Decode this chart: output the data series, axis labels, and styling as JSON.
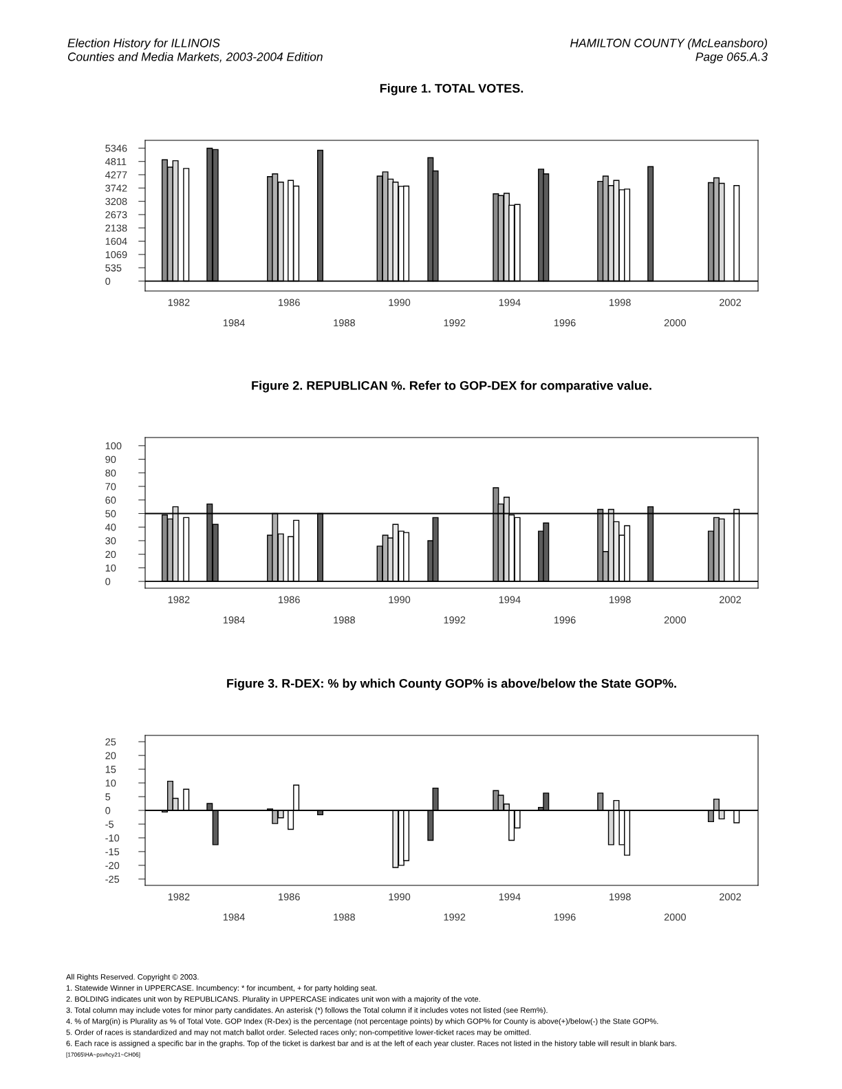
{
  "chart_data": [
    {
      "type": "bar",
      "title": "Figure 1. TOTAL VOTES.",
      "annotations": [
        "Election History for ILLINOIS",
        "Counties and Media Markets, 2003-2004 Edition",
        "HAMILTON COUNTY (McLeansboro)",
        "Page 065.A.3"
      ],
      "x": [
        1981.49,
        1981.69,
        1981.88,
        1982.27,
        1983.12,
        1983.33,
        1985.31,
        1985.49,
        1985.7,
        1986.06,
        1986.26,
        1987.13,
        1989.29,
        1989.49,
        1989.68,
        1989.86,
        1990.07,
        1990.25,
        1991.13,
        1991.31,
        1993.5,
        1993.68,
        1993.89,
        1994.07,
        1994.28,
        1995.14,
        1995.32,
        1997.29,
        1997.48,
        1997.68,
        1997.87,
        1998.07,
        1998.26,
        1999.11,
        2001.3,
        2001.5,
        2001.69,
        2002.23
      ],
      "values": [
        4880,
        4580,
        4840,
        4530,
        5340,
        5290,
        4200,
        4310,
        3980,
        4050,
        3820,
        5260,
        4220,
        4390,
        4100,
        3980,
        3810,
        3820,
        4960,
        4430,
        3510,
        3440,
        3530,
        3050,
        3080,
        4500,
        4310,
        4010,
        4220,
        3840,
        4050,
        3670,
        3700,
        4600,
        3960,
        4150,
        3930,
        3840
      ],
      "colors": [
        "#8c8c8c",
        "#b0b0b0",
        "#d8d8d8",
        "#ffffff",
        "#5c5c5c",
        "#5c5c5c",
        "#8c8c8c",
        "#b0b0b0",
        "#d8d8d8",
        "#ffffff",
        "#ffffff",
        "#5c5c5c",
        "#8c8c8c",
        "#b0b0b0",
        "#d8d8d8",
        "#e8e8e8",
        "#ffffff",
        "#ffffff",
        "#5c5c5c",
        "#5c5c5c",
        "#8c8c8c",
        "#b0b0b0",
        "#d8d8d8",
        "#ffffff",
        "#ffffff",
        "#5c5c5c",
        "#5c5c5c",
        "#8c8c8c",
        "#b0b0b0",
        "#d8d8d8",
        "#e8e8e8",
        "#ffffff",
        "#ffffff",
        "#5c5c5c",
        "#8c8c8c",
        "#b0b0b0",
        "#d8d8d8",
        "#ffffff"
      ],
      "xlim": [
        1980.78,
        2003.01
      ],
      "xticks": [
        1982,
        1986,
        1990,
        1994,
        1998,
        2002
      ],
      "x2lim": [
        1980.78,
        2003.01
      ],
      "x2ticks": [
        1984,
        1988,
        1992,
        1996,
        2000
      ],
      "ylim": [
        -400,
        5660
      ],
      "yticks": [
        0,
        535,
        1069,
        1604,
        2138,
        2673,
        3208,
        3742,
        4277,
        4811,
        5346
      ],
      "ref_lines": [
        {
          "axis": "y",
          "value": 0,
          "color": "#000000"
        }
      ],
      "grid": false
    },
    {
      "type": "bar",
      "title": "Figure 2. REPUBLICAN %. Refer to GOP-DEX for comparative value.",
      "x": [
        1981.49,
        1981.69,
        1981.88,
        1982.27,
        1983.12,
        1983.33,
        1985.31,
        1985.49,
        1985.7,
        1986.06,
        1986.26,
        1987.13,
        1989.29,
        1989.49,
        1989.68,
        1989.86,
        1990.07,
        1990.25,
        1991.13,
        1991.31,
        1993.5,
        1993.68,
        1993.89,
        1994.07,
        1994.28,
        1995.14,
        1995.32,
        1997.29,
        1997.48,
        1997.68,
        1997.87,
        1998.07,
        1998.26,
        1999.11,
        2001.3,
        2001.5,
        2001.69,
        2002.23
      ],
      "values": [
        49,
        46,
        55,
        47,
        57,
        42,
        34,
        50,
        35,
        33,
        45,
        50,
        26,
        34,
        32,
        42,
        37,
        36,
        30,
        47,
        69,
        57,
        62,
        49,
        47,
        37,
        43,
        53,
        22,
        53,
        44,
        34,
        41,
        55,
        37,
        47,
        46,
        53
      ],
      "colors": [
        "#8c8c8c",
        "#b0b0b0",
        "#d8d8d8",
        "#ffffff",
        "#5c5c5c",
        "#5c5c5c",
        "#8c8c8c",
        "#b0b0b0",
        "#d8d8d8",
        "#ffffff",
        "#ffffff",
        "#5c5c5c",
        "#8c8c8c",
        "#b0b0b0",
        "#d8d8d8",
        "#e8e8e8",
        "#ffffff",
        "#ffffff",
        "#5c5c5c",
        "#5c5c5c",
        "#8c8c8c",
        "#b0b0b0",
        "#d8d8d8",
        "#ffffff",
        "#ffffff",
        "#5c5c5c",
        "#5c5c5c",
        "#8c8c8c",
        "#b0b0b0",
        "#d8d8d8",
        "#e8e8e8",
        "#ffffff",
        "#ffffff",
        "#5c5c5c",
        "#8c8c8c",
        "#b0b0b0",
        "#d8d8d8",
        "#ffffff"
      ],
      "xlim": [
        1980.78,
        2003.01
      ],
      "xticks": [
        1982,
        1986,
        1990,
        1994,
        1998,
        2002
      ],
      "x2lim": [
        1980.78,
        2003.01
      ],
      "x2ticks": [
        1984,
        1988,
        1992,
        1996,
        2000
      ],
      "ylim": [
        -5,
        106
      ],
      "yticks": [
        0,
        10,
        20,
        30,
        40,
        50,
        60,
        70,
        80,
        90,
        100
      ],
      "ref_lines": [
        {
          "axis": "y",
          "value": 0,
          "color": "#000000"
        },
        {
          "axis": "y",
          "value": 50,
          "color": "#000000"
        }
      ],
      "grid": false
    },
    {
      "type": "bar",
      "title": "Figure 3. R-DEX: % by which County GOP% is above/below the State GOP%.",
      "annotations": [
        "All Rights Reserved. Copyright © 2003.",
        "1. Statewide Winner in UPPERCASE. Incumbency: * for incumbent, + for party holding seat.",
        "2. BOLDING indicates unit won by REPUBLICANS. Plurality in UPPERCASE indicates unit won with a majority of the vote.",
        "3. Total column may include votes for minor party candidates. An asterisk (*) follows the Total column if it includes votes not listed (see Rem%).",
        "4. % of Marg(in) is Plurality as % of Total Vote. GOP Index (R-Dex) is the percentage (not percentage points) by which GOP% for County is above(+)/below(-) the State GOP%.",
        "5. Order of races is standardized and may not match ballot order. Selected races only; non-competitive lower-ticket races may be omitted.",
        "6. Each race is assigned a specific bar in the graphs. Top of the ticket is darkest bar and is at the left of each year cluster. Races not listed in the history table will result in blank bars.",
        "[17065\\HA~psvhcy21~CH06]"
      ],
      "x": [
        1981.49,
        1981.69,
        1981.88,
        1982.27,
        1983.12,
        1983.33,
        1985.31,
        1985.49,
        1985.7,
        1986.06,
        1986.26,
        1987.13,
        1989.29,
        1989.49,
        1989.68,
        1989.86,
        1990.07,
        1990.25,
        1991.13,
        1991.31,
        1993.5,
        1993.68,
        1993.89,
        1994.07,
        1994.28,
        1995.14,
        1995.32,
        1997.29,
        1997.48,
        1997.68,
        1997.87,
        1998.07,
        1998.26,
        1999.11,
        2001.3,
        2001.5,
        2001.69,
        2002.23
      ],
      "values": [
        -0.6,
        10.6,
        4.4,
        7.7,
        2.5,
        -12.5,
        0.5,
        -4.8,
        -2.7,
        -6.9,
        9.2,
        -1.6,
        null,
        null,
        null,
        -20.8,
        -20,
        -18.3,
        -10.9,
        8.1,
        7.2,
        5.5,
        2.3,
        -10.9,
        -6.4,
        1.1,
        6.3,
        6.3,
        null,
        -12.5,
        3.6,
        -12.5,
        -16.3,
        null,
        -4.1,
        4.1,
        -3.1,
        -4.5
      ],
      "colors": [
        "#8c8c8c",
        "#b0b0b0",
        "#d8d8d8",
        "#ffffff",
        "#5c5c5c",
        "#5c5c5c",
        "#8c8c8c",
        "#b0b0b0",
        "#d8d8d8",
        "#ffffff",
        "#ffffff",
        "#5c5c5c",
        "#8c8c8c",
        "#b0b0b0",
        "#d8d8d8",
        "#e8e8e8",
        "#ffffff",
        "#ffffff",
        "#5c5c5c",
        "#5c5c5c",
        "#8c8c8c",
        "#b0b0b0",
        "#d8d8d8",
        "#ffffff",
        "#ffffff",
        "#5c5c5c",
        "#5c5c5c",
        "#8c8c8c",
        "#b0b0b0",
        "#d8d8d8",
        "#e8e8e8",
        "#ffffff",
        "#ffffff",
        "#5c5c5c",
        "#8c8c8c",
        "#b0b0b0",
        "#d8d8d8",
        "#ffffff"
      ],
      "xlim": [
        1980.78,
        2003.01
      ],
      "xticks": [
        1982,
        1986,
        1990,
        1994,
        1998,
        2002
      ],
      "x2lim": [
        1980.78,
        2003.01
      ],
      "x2ticks": [
        1984,
        1988,
        1992,
        1996,
        2000
      ],
      "ylim": [
        -27.3,
        27.3
      ],
      "yticks": [
        -25,
        -20,
        -15,
        -10,
        -5,
        0,
        5,
        10,
        15,
        20,
        25
      ],
      "ref_lines": [
        {
          "axis": "y",
          "value": 0,
          "color": "#000000"
        }
      ],
      "grid": false
    }
  ]
}
